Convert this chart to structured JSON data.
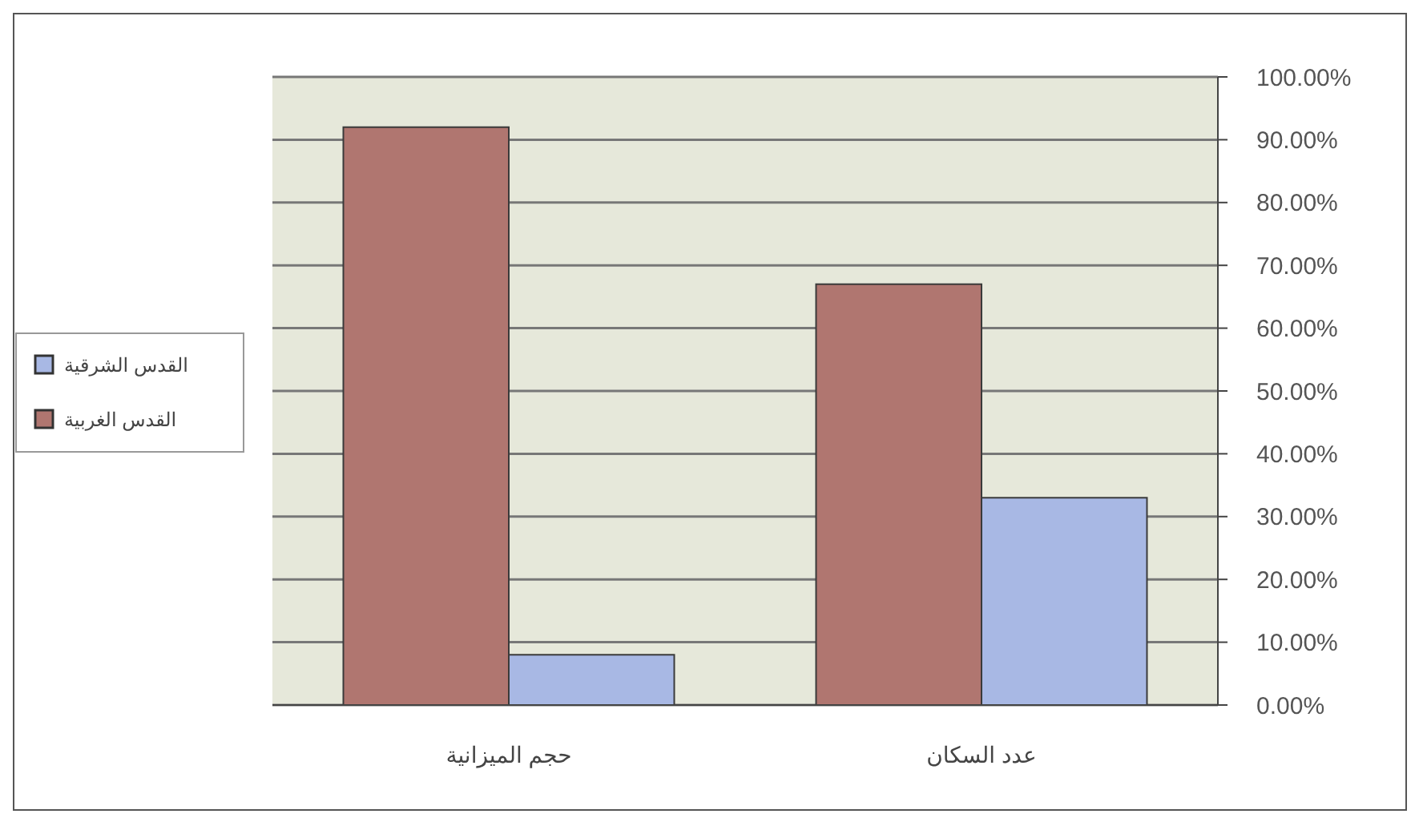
{
  "chart_data": {
    "type": "bar",
    "categories": [
      "حجم الميزانية",
      "عدد السكان"
    ],
    "series": [
      {
        "name": "القدس الغربية",
        "color": "#b07670",
        "values": [
          92,
          67
        ]
      },
      {
        "name": "القدس الشرقية",
        "color": "#a8b8e4",
        "values": [
          8,
          33
        ]
      }
    ],
    "ylim": [
      0,
      100
    ],
    "yticks": [
      {
        "value": 0,
        "label": "0.00%"
      },
      {
        "value": 10,
        "label": "10.00%"
      },
      {
        "value": 20,
        "label": "20.00%"
      },
      {
        "value": 30,
        "label": "30.00%"
      },
      {
        "value": 40,
        "label": "40.00%"
      },
      {
        "value": 50,
        "label": "50.00%"
      },
      {
        "value": 60,
        "label": "60.00%"
      },
      {
        "value": 70,
        "label": "70.00%"
      },
      {
        "value": 80,
        "label": "80.00%"
      },
      {
        "value": 90,
        "label": "90.00%"
      },
      {
        "value": 100,
        "label": "100.00%"
      }
    ],
    "grid": "y",
    "legend": "left"
  }
}
